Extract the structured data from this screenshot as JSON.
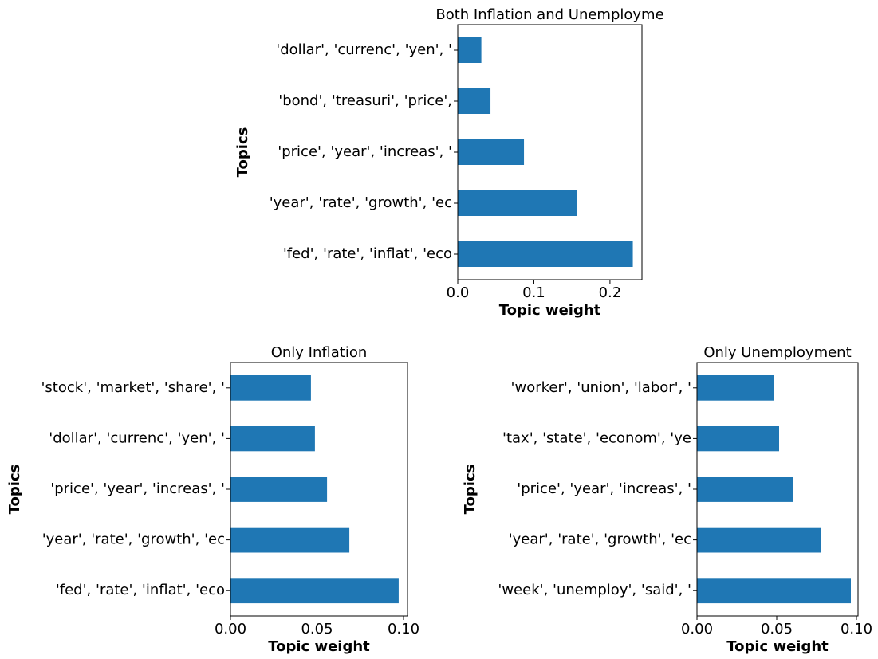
{
  "chart_data": [
    {
      "type": "barh",
      "title": "Both Inflation and Unemployme",
      "xlabel": "Topic weight",
      "ylabel": "Topics",
      "categories": [
        "'fed', 'rate', 'inflat', 'eco",
        "'year', 'rate', 'growth', 'ec",
        "'price', 'year', 'increas', '",
        "'bond', 'treasuri', 'price', ",
        "'dollar', 'currenc', 'yen', '"
      ],
      "values": [
        0.23,
        0.157,
        0.087,
        0.043,
        0.031
      ],
      "color": "#1f77b4",
      "xlim": [
        0,
        0.242
      ],
      "xticks": [
        {
          "value": 0,
          "label": "0.0"
        },
        {
          "value": 0.1,
          "label": "0.1"
        },
        {
          "value": 0.2,
          "label": "0.2"
        }
      ]
    },
    {
      "type": "barh",
      "title": "Only Inflation",
      "xlabel": "Topic weight",
      "ylabel": "Topics",
      "categories": [
        "'fed', 'rate', 'inflat', 'eco",
        "'year', 'rate', 'growth', 'ec",
        "'price', 'year', 'increas', '",
        "'dollar', 'currenc', 'yen', '",
        "'stock', 'market', 'share', '"
      ],
      "values": [
        0.0972,
        0.0687,
        0.0558,
        0.0488,
        0.0465
      ],
      "color": "#1f77b4",
      "xlim": [
        0,
        0.1023
      ],
      "xticks": [
        {
          "value": 0,
          "label": "0.00"
        },
        {
          "value": 0.05,
          "label": "0.05"
        },
        {
          "value": 0.1,
          "label": "0.10"
        }
      ]
    },
    {
      "type": "barh",
      "title": "Only Unemployment",
      "xlabel": "Topic weight",
      "ylabel": "Topics",
      "categories": [
        "'week', 'unemploy', 'said', '",
        "'year', 'rate', 'growth', 'ec",
        "'price', 'year', 'increas', '",
        "'tax', 'state', 'econom', 'ye",
        "'worker', 'union', 'labor', '"
      ],
      "values": [
        0.0965,
        0.078,
        0.0605,
        0.0515,
        0.048
      ],
      "color": "#1f77b4",
      "xlim": [
        0,
        0.101
      ],
      "xticks": [
        {
          "value": 0,
          "label": "0.00"
        },
        {
          "value": 0.05,
          "label": "0.05"
        },
        {
          "value": 0.1,
          "label": "0.10"
        }
      ]
    }
  ]
}
